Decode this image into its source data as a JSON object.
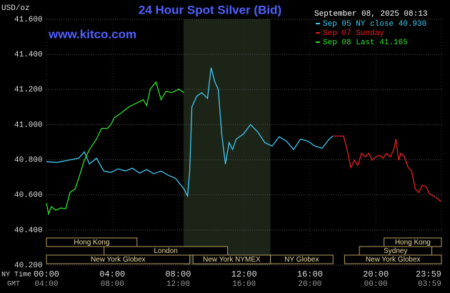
{
  "chart_data": {
    "type": "line",
    "title": "24 Hour Spot Silver (Bid)",
    "watermark": "www.kitco.com",
    "y_label": "USD/oz",
    "timestamp": "September 08, 2025 08:13",
    "x_label": "NY Time",
    "x2_label": "GMT",
    "xlim": [
      0,
      23.983
    ],
    "xticks": [
      {
        "value": 0,
        "label": "00:00"
      },
      {
        "value": 4,
        "label": "04:00"
      },
      {
        "value": 8,
        "label": "08:00"
      },
      {
        "value": 12,
        "label": "12:00"
      },
      {
        "value": 16,
        "label": "16:00"
      },
      {
        "value": 20,
        "label": "20:00"
      },
      {
        "value": 23.983,
        "label": "23:59"
      }
    ],
    "xticks_gmt": [
      "04:00",
      "08:00",
      "12:00",
      "16:00",
      "20:00",
      "00:00",
      "03:59"
    ],
    "ylim": [
      40.2,
      41.6
    ],
    "yticks": [
      {
        "value": 40.2,
        "label": "40.200"
      },
      {
        "value": 40.4,
        "label": "40.400"
      },
      {
        "value": 40.6,
        "label": "40.600"
      },
      {
        "value": 40.8,
        "label": "40.800"
      },
      {
        "value": 41.0,
        "label": "41.000"
      },
      {
        "value": 41.2,
        "label": "41.200"
      },
      {
        "value": 41.4,
        "label": "41.400"
      },
      {
        "value": 41.6,
        "label": "41.600"
      }
    ],
    "grid": true,
    "highlight": [
      8.33,
      13.6
    ],
    "sessions": [
      {
        "label": "Hong Kong",
        "start": 0,
        "end": 5.5
      },
      {
        "label": "London",
        "start": 3.5,
        "end": 11
      },
      {
        "label": "New York Globex",
        "start": 0,
        "end": 8.7
      },
      {
        "label": "New York NYMEX",
        "start": 8.9,
        "end": 13.6
      },
      {
        "label": "NY Globex",
        "start": 13.6,
        "end": 17.4
      },
      {
        "label": "Sydney",
        "start": 19,
        "end": 23.4
      },
      {
        "label": "Hong Kong",
        "start": 20.5,
        "end": 23.983
      },
      {
        "label": "New York Globex",
        "start": 18.1,
        "end": 23.983
      }
    ],
    "series": [
      {
        "name": "Sep 05 NY close 40.930",
        "color": "#3fc8f0",
        "x": [
          0,
          0.65,
          1.3,
          1.96,
          2.3,
          2.61,
          3.04,
          3.48,
          3.91,
          4.35,
          4.78,
          5.22,
          5.65,
          6.09,
          6.52,
          6.96,
          7.39,
          7.83,
          8.35,
          8.57,
          8.7,
          8.83,
          9.13,
          9.43,
          9.78,
          10,
          10.22,
          10.43,
          10.65,
          10.87,
          11.09,
          11.3,
          11.52,
          11.96,
          12.39,
          12.83,
          13.26,
          13.7,
          14.13,
          14.57,
          15,
          15.43,
          15.87,
          16.3,
          16.74,
          17.17,
          17.39
        ],
        "values": [
          40.789,
          40.785,
          40.797,
          40.809,
          40.845,
          40.776,
          40.809,
          40.736,
          40.728,
          40.748,
          40.736,
          40.752,
          40.724,
          40.744,
          40.72,
          40.736,
          40.712,
          40.695,
          40.634,
          40.594,
          40.736,
          41.101,
          41.162,
          41.182,
          41.15,
          41.324,
          41.243,
          41.202,
          40.939,
          40.776,
          40.898,
          40.858,
          40.918,
          40.947,
          41.0,
          40.959,
          40.898,
          40.878,
          40.931,
          40.906,
          40.858,
          40.918,
          40.906,
          40.878,
          40.866,
          40.918,
          40.935
        ]
      },
      {
        "name": "Sep 07 Sunday",
        "color": "#e82020",
        "x": [
          17.39,
          18.04,
          18.26,
          18.48,
          18.7,
          18.91,
          19.13,
          19.35,
          19.57,
          19.78,
          20,
          20.22,
          20.43,
          20.65,
          20.87,
          21.09,
          21.22,
          21.39,
          21.52,
          21.74,
          21.96,
          22.17,
          22.39,
          22.61,
          22.83,
          23.04,
          23.26,
          23.48,
          23.7,
          23.91,
          23.98
        ],
        "values": [
          40.935,
          40.935,
          40.858,
          40.756,
          40.797,
          40.768,
          40.837,
          40.817,
          40.837,
          40.797,
          40.817,
          40.825,
          40.809,
          40.837,
          40.817,
          40.858,
          40.918,
          40.797,
          40.837,
          40.817,
          40.756,
          40.736,
          40.634,
          40.614,
          40.655,
          40.647,
          40.606,
          40.594,
          40.582,
          40.565,
          40.565
        ]
      },
      {
        "name": "Sep 08 Last 41.165",
        "color": "#30e030",
        "x": [
          0,
          0.13,
          0.3,
          0.57,
          0.87,
          1.17,
          1.43,
          1.74,
          1.96,
          2.3,
          2.61,
          3.04,
          3.35,
          3.7,
          3.91,
          4.13,
          4.57,
          5,
          5.43,
          5.87,
          6.09,
          6.3,
          6.65,
          6.96,
          7.26,
          7.61,
          8.04,
          8.35
        ],
        "values": [
          40.553,
          40.492,
          40.533,
          40.513,
          40.525,
          40.521,
          40.614,
          40.634,
          40.695,
          40.797,
          40.858,
          40.918,
          40.979,
          40.979,
          41.0,
          41.04,
          41.069,
          41.101,
          41.121,
          41.142,
          41.109,
          41.202,
          41.243,
          41.142,
          41.19,
          41.182,
          41.202,
          41.182
        ]
      }
    ]
  }
}
